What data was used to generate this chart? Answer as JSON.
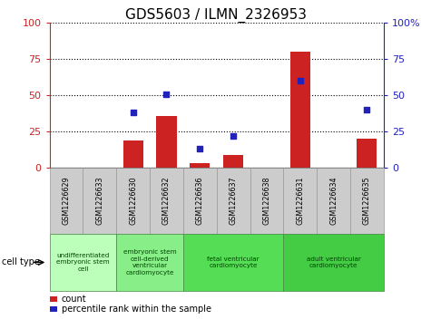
{
  "title": "GDS5603 / ILMN_2326953",
  "samples": [
    "GSM1226629",
    "GSM1226633",
    "GSM1226630",
    "GSM1226632",
    "GSM1226636",
    "GSM1226637",
    "GSM1226638",
    "GSM1226631",
    "GSM1226634",
    "GSM1226635"
  ],
  "counts": [
    0,
    0,
    19,
    36,
    3,
    9,
    0,
    80,
    0,
    20
  ],
  "percentiles": [
    null,
    null,
    38,
    51,
    13,
    22,
    null,
    60,
    null,
    40
  ],
  "ylim_left": [
    0,
    100
  ],
  "ylim_right": [
    0,
    100
  ],
  "yticks": [
    0,
    25,
    50,
    75,
    100
  ],
  "bar_color": "#cc2222",
  "dot_color": "#2222bb",
  "cell_types": [
    {
      "label": "undifferentiated\nembryonic stem\ncell",
      "span": [
        0,
        2
      ],
      "color": "#bbffbb"
    },
    {
      "label": "embryonic stem\ncell-derived\nventricular\ncardiomyocyte",
      "span": [
        2,
        4
      ],
      "color": "#88ee88"
    },
    {
      "label": "fetal ventricular\ncardiomyocyte",
      "span": [
        4,
        7
      ],
      "color": "#55dd55"
    },
    {
      "label": "adult ventricular\ncardiomyocyte",
      "span": [
        7,
        10
      ],
      "color": "#44cc44"
    }
  ],
  "legend_count_label": "count",
  "legend_percentile_label": "percentile rank within the sample",
  "cell_type_label": "cell type",
  "background_color": "#ffffff",
  "plot_bg": "#ffffff",
  "axis_color_left": "#cc2222",
  "axis_color_right": "#2222bb",
  "gray_box_color": "#cccccc",
  "gray_box_edge": "#999999",
  "green_box_edge": "#448844"
}
